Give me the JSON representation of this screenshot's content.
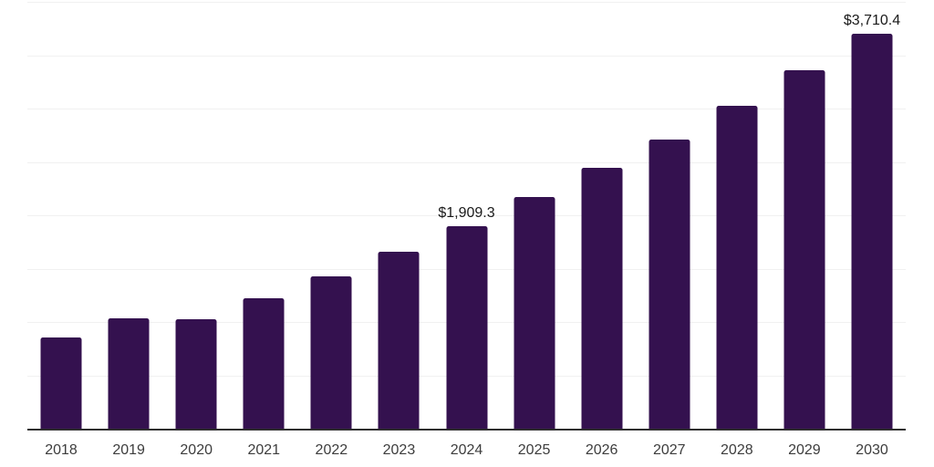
{
  "chart_style": {
    "background": "#ffffff",
    "bar_color": "#34114F",
    "gridline_color": "#f1f1f1",
    "axis_line_color": "#2e2e2e",
    "tick_label_color": "#3d3d3d",
    "data_label_color": "#1a1a1a"
  },
  "chart_data": {
    "type": "bar",
    "title": "",
    "xlabel": "",
    "ylabel": "",
    "categories": [
      "2018",
      "2019",
      "2020",
      "2021",
      "2022",
      "2023",
      "2024",
      "2025",
      "2026",
      "2027",
      "2028",
      "2029",
      "2030"
    ],
    "values": [
      865.0,
      1043.5,
      1035.0,
      1228.0,
      1440.0,
      1670.5,
      1909.3,
      2177.0,
      2450.0,
      2722.0,
      3032.5,
      3365.0,
      3710.4
    ],
    "bar_labels": [
      "",
      "",
      "",
      "",
      "",
      "",
      "$1,909.3",
      "",
      "",
      "",
      "",
      "",
      "$3,710.4"
    ],
    "labeled_points": [
      {
        "category": "2024",
        "label": "$1,909.3",
        "value": 1909.3
      },
      {
        "category": "2030",
        "label": "$3,710.4",
        "value": 3710.4
      }
    ],
    "ylim": [
      0,
      4000
    ],
    "grid_step": 500,
    "grid": true,
    "legend": false,
    "y_axis_labels_visible": false,
    "currency_prefix": "$"
  }
}
